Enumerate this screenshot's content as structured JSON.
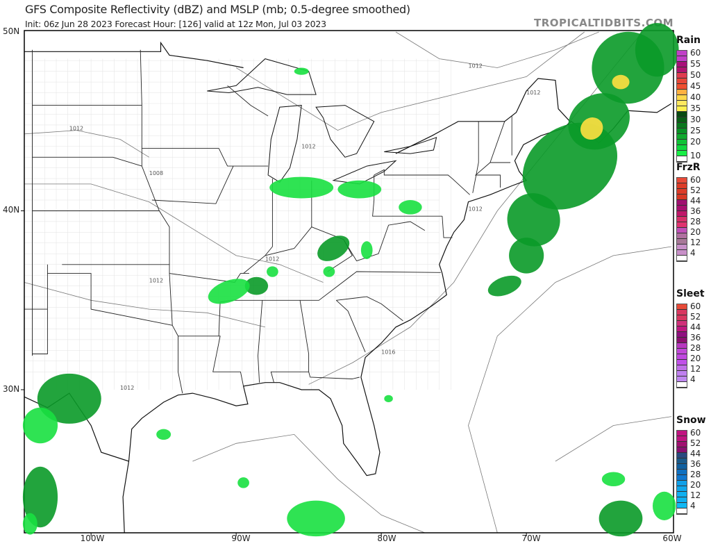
{
  "header": {
    "title": "GFS Composite Reflectivity (dBZ) and MSLP (mb; 0.5-degree smoothed)",
    "subtitle": "Init: 06z Jun 28 2023   Forecast Hour: [126]   valid at 12z Mon, Jul 03 2023",
    "brand": "TROPICALTIDBITS.COM"
  },
  "axes": {
    "lat_labels": [
      "50N",
      "40N",
      "30N"
    ],
    "lon_labels": [
      "100W",
      "90W",
      "80W",
      "70W",
      "60W"
    ]
  },
  "isobars": {
    "labels": [
      "1012",
      "1008",
      "1012",
      "1012",
      "1012",
      "1012",
      "1012",
      "1016",
      "1012",
      "1012"
    ]
  },
  "legends": [
    {
      "title": "Rain",
      "labels": [
        "60",
        "55",
        "50",
        "45",
        "40",
        "35",
        "30",
        "25",
        "20",
        "10"
      ],
      "colors": [
        "#c040c8",
        "#c040c8",
        "#a8107a",
        "#b01470",
        "#e03c50",
        "#e84838",
        "#f05030",
        "#ffb040",
        "#ffd84a",
        "#ffe860",
        "#fff050",
        "#0a4a12",
        "#0a5e16",
        "#0a781e",
        "#0a9226",
        "#10aa2e",
        "#10c236",
        "#10d83e",
        "#18ee46",
        "#ffffff"
      ]
    },
    {
      "title": "FrzR",
      "labels": [
        "60",
        "52",
        "44",
        "36",
        "28",
        "20",
        "12",
        "4"
      ],
      "colors": [
        "#e84a38",
        "#dc3c28",
        "#dc3c28",
        "#d83824",
        "#a01070",
        "#a81070",
        "#c0186a",
        "#d8306a",
        "#e03470",
        "#c050b8",
        "#b070a0",
        "#a87898",
        "#c890c8",
        "#c890c8",
        "#ffffff"
      ]
    },
    {
      "title": "Sleet",
      "labels": [
        "60",
        "52",
        "44",
        "36",
        "28",
        "20",
        "12",
        "4"
      ],
      "colors": [
        "#e84a38",
        "#d83860",
        "#d83860",
        "#d0307a",
        "#c01880",
        "#901080",
        "#8c1070",
        "#b838c0",
        "#c048d8",
        "#c048e0",
        "#c050e8",
        "#c070e8",
        "#c080f0",
        "#c088f0",
        "#ffffff"
      ]
    },
    {
      "title": "Snow",
      "labels": [
        "60",
        "52",
        "44",
        "36",
        "28",
        "20",
        "12",
        "4"
      ],
      "colors": [
        "#c01480",
        "#c01480",
        "#a01070",
        "#8a1070",
        "#2a4a80",
        "#1a5a8a",
        "#1060a0",
        "#1070c0",
        "#1078d0",
        "#10a0e8",
        "#10a8ec",
        "#10b0f0",
        "#10b0f0",
        "#10b8f4",
        "#ffffff"
      ]
    }
  ],
  "colors": {
    "precip_light": "#18e040",
    "precip_mid": "#0a9a28",
    "precip_dark": "#0a5e16",
    "precip_yellow": "#ffe040",
    "border": "#111111",
    "county": "#bbbbbb",
    "isobar": "#777777"
  }
}
